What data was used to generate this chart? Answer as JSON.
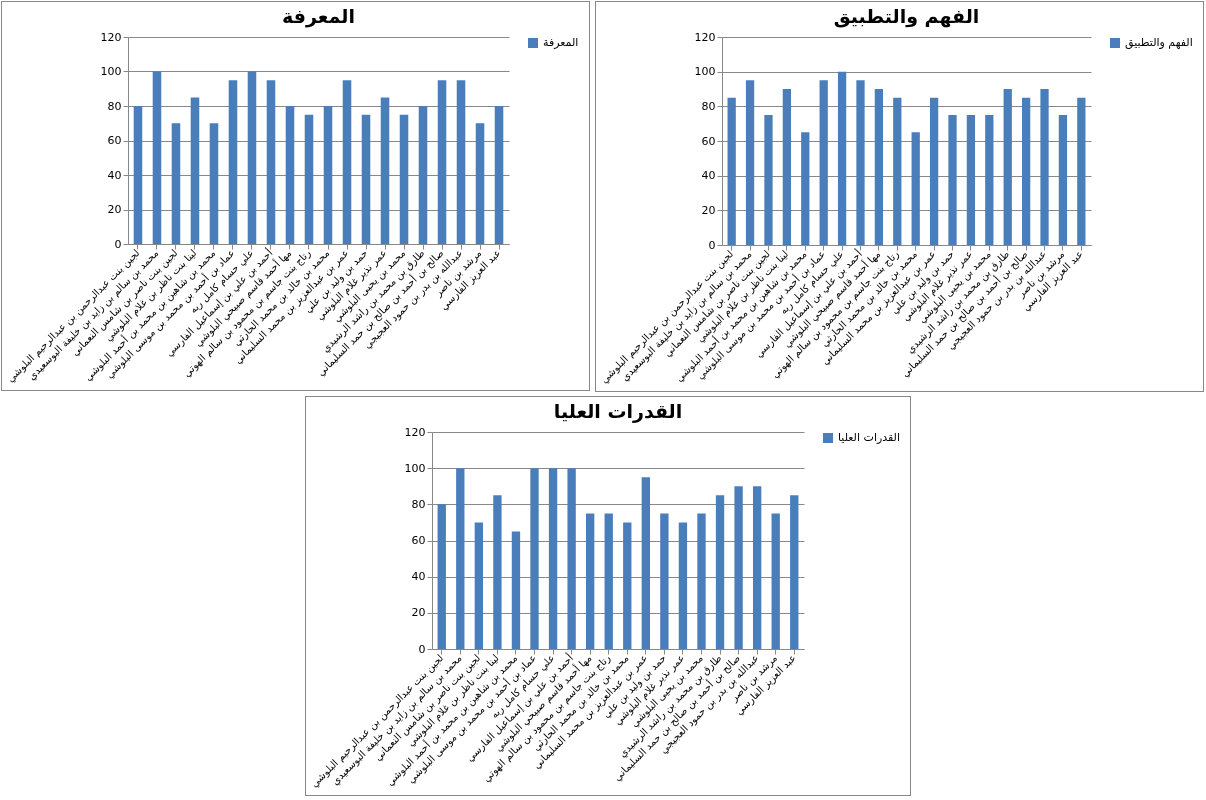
{
  "chart_data": [
    {
      "type": "bar",
      "title": "المعرفة",
      "categories": [
        "لجين بنت عبدالرحمن بن عبدالرحيم البلوشي",
        "محمد بن سالم بن زايد بن خليفة البوسعيدي",
        "لجين بنت ناصر بن شامس النعماني",
        "لينا بنت ناظر بن غلام البلوشي",
        "محمد بن شاهين بن محمد بن أحمد البلوشي",
        "عماد بن أحمد بن محمد بن موسى البلوشي",
        "علي حسام كامل ربه",
        "أحمد بن علي بن إسماعيل الفارسي",
        "مها أحمد قاسم صبيحي البلوشي",
        "رتاج بنت جاسم بن محمود بن سالم الهوتي",
        "محمد بن خالد بن محمد الحارثي",
        "عمر بن عبدالعزيز بن محمد السليماني",
        "حمد بن وليد بن علي",
        "عمر نذير غلام البلوشي",
        "محمد بن يحيى البلوشي",
        "طارق بن محمد بن راشد الرشيدي",
        "صالح بن أحمد بن صالح بن حمد السليماني",
        "عبدالله بن بدر بن حمود العجيجي",
        "مرشد بن ناصر",
        "عبد العزيز الفارسي"
      ],
      "series": [
        {
          "name": "المعرفة",
          "color": "#4a7ebb",
          "values": [
            80,
            100,
            70,
            85,
            70,
            95,
            100,
            95,
            80,
            75,
            80,
            95,
            75,
            85,
            75,
            80,
            95,
            95,
            70,
            80
          ]
        }
      ],
      "ylim": [
        0,
        120
      ],
      "yticks": [
        0,
        20,
        40,
        60,
        80,
        100,
        120
      ],
      "grid": "y",
      "legend": "right"
    },
    {
      "type": "bar",
      "title": "الفهم والتطبيق",
      "categories": [
        "لجين بنت عبدالرحمن بن عبدالرحيم البلوشي",
        "محمد بن سالم بن زايد بن خليفة البوسعيدي",
        "لجين بنت ناصر بن شامس النعماني",
        "لينا بنت ناظر بن غلام البلوشي",
        "محمد بن شاهين بن محمد بن أحمد البلوشي",
        "عماد بن أحمد بن محمد بن موسى البلوشي",
        "علي حسام كامل ربه",
        "أحمد بن علي بن إسماعيل الفارسي",
        "مها أحمد قاسم صبيحي البلوشي",
        "رتاج بنت جاسم بن محمود بن سالم الهوتي",
        "محمد بن خالد بن محمد الحارثي",
        "عمر بن عبدالعزيز بن محمد السليماني",
        "حمد بن وليد بن علي",
        "عمر نذير غلام البلوشي",
        "محمد بن يحيى البلوشي",
        "طارق بن محمد بن راشد الرشيدي",
        "صالح بن أحمد بن صالح بن حمد السليماني",
        "عبدالله بن بدر بن حمود العجيجي",
        "مرشد بن ناصر",
        "عبد العزيز الفارسي"
      ],
      "series": [
        {
          "name": "الفهم والتطبيق",
          "color": "#4a7ebb",
          "values": [
            85,
            95,
            75,
            90,
            65,
            95,
            100,
            95,
            90,
            85,
            65,
            85,
            75,
            75,
            75,
            90,
            85,
            90,
            75,
            85
          ]
        }
      ],
      "ylim": [
        0,
        120
      ],
      "yticks": [
        0,
        20,
        40,
        60,
        80,
        100,
        120
      ],
      "grid": "y",
      "legend": "right"
    },
    {
      "type": "bar",
      "title": "القدرات العليا",
      "categories": [
        "لجين بنت عبدالرحمن بن عبدالرحيم البلوشي",
        "محمد بن سالم بن زايد بن خليفة البوسعيدي",
        "لجين بنت ناصر بن شامس النعماني",
        "لينا بنت ناظر بن غلام البلوشي",
        "محمد بن شاهين بن محمد بن أحمد البلوشي",
        "عماد بن أحمد بن محمد بن موسى البلوشي",
        "علي حسام كامل ربه",
        "أحمد بن علي بن إسماعيل الفارسي",
        "مها أحمد قاسم صبيحي البلوشي",
        "رتاج بنت جاسم بن محمود بن سالم الهوتي",
        "محمد بن خالد بن محمد الحارثي",
        "عمر بن عبدالعزيز بن محمد السليماني",
        "حمد بن وليد بن علي",
        "عمر نذير غلام البلوشي",
        "محمد بن يحيى البلوشي",
        "طارق بن محمد بن راشد الرشيدي",
        "صالح بن أحمد بن صالح بن حمد السليماني",
        "عبدالله بن بدر بن حمود العجيجي",
        "مرشد بن ناصر",
        "عبد العزيز الفارسي"
      ],
      "series": [
        {
          "name": "القدرات العليا",
          "color": "#4a7ebb",
          "values": [
            80,
            100,
            70,
            85,
            65,
            100,
            100,
            100,
            75,
            75,
            70,
            95,
            75,
            70,
            75,
            85,
            90,
            90,
            75,
            85
          ]
        }
      ],
      "ylim": [
        0,
        120
      ],
      "yticks": [
        0,
        20,
        40,
        60,
        80,
        100,
        120
      ],
      "grid": "y",
      "legend": "right"
    }
  ]
}
